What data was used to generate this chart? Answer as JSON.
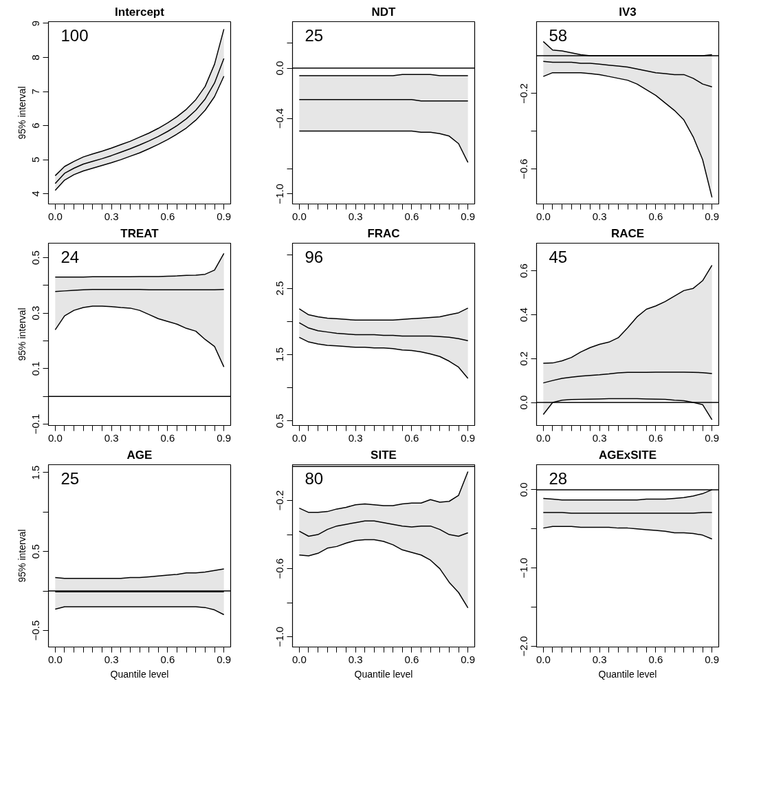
{
  "chart_data": [
    {
      "type": "line",
      "title": "Intercept",
      "ylabel": "95% interval",
      "annotations": [
        "100"
      ],
      "x": [
        0.05,
        0.1,
        0.15,
        0.2,
        0.25,
        0.3,
        0.35,
        0.4,
        0.45,
        0.5,
        0.55,
        0.6,
        0.65,
        0.7,
        0.75,
        0.8,
        0.85,
        0.9,
        0.95
      ],
      "series": [
        {
          "color": "#000000",
          "values": [
            4.3,
            4.6,
            4.75,
            4.87,
            4.95,
            5.03,
            5.12,
            5.22,
            5.32,
            5.43,
            5.55,
            5.68,
            5.83,
            6.0,
            6.2,
            6.45,
            6.78,
            7.25,
            7.97
          ],
          "upper": [
            4.53,
            4.8,
            4.95,
            5.08,
            5.17,
            5.25,
            5.34,
            5.44,
            5.54,
            5.66,
            5.78,
            5.92,
            6.08,
            6.26,
            6.48,
            6.76,
            7.15,
            7.8,
            8.83
          ],
          "lower": [
            4.1,
            4.4,
            4.56,
            4.67,
            4.75,
            4.83,
            4.91,
            5.0,
            5.1,
            5.2,
            5.32,
            5.45,
            5.59,
            5.75,
            5.93,
            6.16,
            6.45,
            6.85,
            7.45
          ]
        },
        {
          "color": "#000000",
          "values": [
            4.53,
            4.8,
            4.95,
            5.08,
            5.17,
            5.25,
            5.34,
            5.44,
            5.54,
            5.66,
            5.78,
            5.92,
            6.08,
            6.26,
            6.48,
            6.76,
            7.15,
            7.8,
            8.83
          ]
        },
        {
          "color": "#000000",
          "values": [
            4.1,
            4.4,
            4.56,
            4.67,
            4.75,
            4.83,
            4.91,
            5.0,
            5.1,
            5.2,
            5.32,
            5.45,
            5.59,
            5.75,
            5.93,
            6.16,
            6.45,
            6.85,
            7.45
          ]
        }
      ],
      "xlim": [
        0.014,
        0.986
      ],
      "ylim": [
        3.7,
        9.05
      ],
      "yticks": [
        4,
        5,
        6,
        7,
        8,
        9
      ],
      "xticks": [
        {
          "value": 0.05,
          "label": "0.0"
        },
        {
          "value": 0.1,
          "label": null
        },
        {
          "value": 0.15,
          "label": null
        },
        {
          "value": 0.2,
          "label": null
        },
        {
          "value": 0.25,
          "label": null
        },
        {
          "value": 0.3,
          "label": null
        },
        {
          "value": 0.35,
          "label": "0.3"
        },
        {
          "value": 0.4,
          "label": null
        },
        {
          "value": 0.45,
          "label": null
        },
        {
          "value": 0.5,
          "label": null
        },
        {
          "value": 0.55,
          "label": null
        },
        {
          "value": 0.6,
          "label": null
        },
        {
          "value": 0.65,
          "label": "0.6"
        },
        {
          "value": 0.7,
          "label": null
        },
        {
          "value": 0.75,
          "label": null
        },
        {
          "value": 0.8,
          "label": null
        },
        {
          "value": 0.85,
          "label": null
        },
        {
          "value": 0.9,
          "label": null
        },
        {
          "value": 0.95,
          "label": "0.9"
        }
      ]
    },
    {
      "type": "line",
      "title": "NDT",
      "annotations": [
        "25"
      ],
      "x": [
        0.05,
        0.1,
        0.15,
        0.2,
        0.25,
        0.3,
        0.35,
        0.4,
        0.45,
        0.5,
        0.55,
        0.6,
        0.65,
        0.7,
        0.75,
        0.8,
        0.85,
        0.9,
        0.95
      ],
      "series": [
        {
          "color": "#000000",
          "values": [
            -0.25,
            -0.25,
            -0.25,
            -0.25,
            -0.25,
            -0.25,
            -0.25,
            -0.25,
            -0.25,
            -0.25,
            -0.25,
            -0.25,
            -0.25,
            -0.26,
            -0.26,
            -0.26,
            -0.26,
            -0.26,
            -0.26
          ],
          "upper": [
            -0.06,
            -0.06,
            -0.06,
            -0.06,
            -0.06,
            -0.06,
            -0.06,
            -0.06,
            -0.06,
            -0.06,
            -0.06,
            -0.05,
            -0.05,
            -0.05,
            -0.05,
            -0.06,
            -0.06,
            -0.06,
            -0.06
          ],
          "lower": [
            -0.5,
            -0.5,
            -0.5,
            -0.5,
            -0.5,
            -0.5,
            -0.5,
            -0.5,
            -0.5,
            -0.5,
            -0.5,
            -0.5,
            -0.5,
            -0.51,
            -0.51,
            -0.52,
            -0.54,
            -0.6,
            -0.75
          ]
        },
        {
          "color": "#000000",
          "values": [
            -0.06,
            -0.06,
            -0.06,
            -0.06,
            -0.06,
            -0.06,
            -0.06,
            -0.06,
            -0.06,
            -0.06,
            -0.06,
            -0.05,
            -0.05,
            -0.05,
            -0.05,
            -0.06,
            -0.06,
            -0.06,
            -0.06
          ]
        },
        {
          "color": "#000000",
          "values": [
            -0.5,
            -0.5,
            -0.5,
            -0.5,
            -0.5,
            -0.5,
            -0.5,
            -0.5,
            -0.5,
            -0.5,
            -0.5,
            -0.5,
            -0.5,
            -0.51,
            -0.51,
            -0.52,
            -0.54,
            -0.6,
            -0.75
          ]
        }
      ],
      "ref_lines": [
        {
          "axis": "y",
          "value": 0
        }
      ],
      "xlim": [
        0.014,
        0.986
      ],
      "ylim": [
        -1.08,
        0.37
      ],
      "yticks": [
        {
          "value": 0.2,
          "label": null
        },
        {
          "value": 0,
          "label": "0.0"
        },
        -0.4,
        {
          "value": -0.8,
          "label": null
        },
        {
          "value": -1,
          "label": "−1.0"
        }
      ],
      "xticks": [
        {
          "value": 0.05,
          "label": "0.0"
        },
        {
          "value": 0.1,
          "label": null
        },
        {
          "value": 0.15,
          "label": null
        },
        {
          "value": 0.2,
          "label": null
        },
        {
          "value": 0.25,
          "label": null
        },
        {
          "value": 0.3,
          "label": null
        },
        {
          "value": 0.35,
          "label": "0.3"
        },
        {
          "value": 0.4,
          "label": null
        },
        {
          "value": 0.45,
          "label": null
        },
        {
          "value": 0.5,
          "label": null
        },
        {
          "value": 0.55,
          "label": null
        },
        {
          "value": 0.6,
          "label": null
        },
        {
          "value": 0.65,
          "label": "0.6"
        },
        {
          "value": 0.7,
          "label": null
        },
        {
          "value": 0.75,
          "label": null
        },
        {
          "value": 0.8,
          "label": null
        },
        {
          "value": 0.85,
          "label": null
        },
        {
          "value": 0.9,
          "label": null
        },
        {
          "value": 0.95,
          "label": "0.9"
        }
      ]
    },
    {
      "type": "line",
      "title": "IV3",
      "annotations": [
        "58"
      ],
      "x": [
        0.05,
        0.1,
        0.15,
        0.2,
        0.25,
        0.3,
        0.35,
        0.4,
        0.45,
        0.5,
        0.55,
        0.6,
        0.65,
        0.7,
        0.75,
        0.8,
        0.85,
        0.9,
        0.95
      ],
      "series": [
        {
          "color": "#000000",
          "values": [
            -0.03,
            -0.035,
            -0.035,
            -0.035,
            -0.04,
            -0.04,
            -0.045,
            -0.05,
            -0.055,
            -0.06,
            -0.07,
            -0.08,
            -0.09,
            -0.095,
            -0.1,
            -0.1,
            -0.12,
            -0.15,
            -0.165
          ],
          "upper": [
            0.075,
            0.03,
            0.025,
            0.015,
            0.005,
            0.0,
            0.0,
            0.0,
            0.0,
            0.0,
            0.0,
            0.0,
            0.0,
            0.0,
            0.0,
            0.0,
            0.0,
            0.0,
            0.005
          ],
          "lower": [
            -0.11,
            -0.09,
            -0.09,
            -0.09,
            -0.09,
            -0.095,
            -0.1,
            -0.11,
            -0.12,
            -0.13,
            -0.15,
            -0.18,
            -0.21,
            -0.25,
            -0.29,
            -0.34,
            -0.43,
            -0.55,
            -0.75
          ]
        },
        {
          "color": "#000000",
          "values": [
            0.075,
            0.03,
            0.025,
            0.015,
            0.005,
            0.0,
            0.0,
            0.0,
            0.0,
            0.0,
            0.0,
            0.0,
            0.0,
            0.0,
            0.0,
            0.0,
            0.0,
            0.0,
            0.005
          ]
        },
        {
          "color": "#000000",
          "values": [
            -0.11,
            -0.09,
            -0.09,
            -0.09,
            -0.09,
            -0.095,
            -0.1,
            -0.11,
            -0.12,
            -0.13,
            -0.15,
            -0.18,
            -0.21,
            -0.25,
            -0.29,
            -0.34,
            -0.43,
            -0.55,
            -0.75
          ]
        }
      ],
      "ref_lines": [
        {
          "axis": "y",
          "value": 0
        }
      ],
      "xlim": [
        0.014,
        0.986
      ],
      "ylim": [
        -0.785,
        0.18
      ],
      "yticks": [
        -0.2,
        {
          "value": -0.4,
          "label": null
        },
        -0.6
      ],
      "xticks": [
        {
          "value": 0.05,
          "label": "0.0"
        },
        {
          "value": 0.1,
          "label": null
        },
        {
          "value": 0.15,
          "label": null
        },
        {
          "value": 0.2,
          "label": null
        },
        {
          "value": 0.25,
          "label": null
        },
        {
          "value": 0.3,
          "label": null
        },
        {
          "value": 0.35,
          "label": "0.3"
        },
        {
          "value": 0.4,
          "label": null
        },
        {
          "value": 0.45,
          "label": null
        },
        {
          "value": 0.5,
          "label": null
        },
        {
          "value": 0.55,
          "label": null
        },
        {
          "value": 0.6,
          "label": null
        },
        {
          "value": 0.65,
          "label": "0.6"
        },
        {
          "value": 0.7,
          "label": null
        },
        {
          "value": 0.75,
          "label": null
        },
        {
          "value": 0.8,
          "label": null
        },
        {
          "value": 0.85,
          "label": null
        },
        {
          "value": 0.9,
          "label": null
        },
        {
          "value": 0.95,
          "label": "0.9"
        }
      ]
    },
    {
      "type": "line",
      "title": "TREAT",
      "ylabel": "95% interval",
      "annotations": [
        "24"
      ],
      "x": [
        0.05,
        0.1,
        0.15,
        0.2,
        0.25,
        0.3,
        0.35,
        0.4,
        0.45,
        0.5,
        0.55,
        0.6,
        0.65,
        0.7,
        0.75,
        0.8,
        0.85,
        0.9,
        0.95
      ],
      "series": [
        {
          "color": "#000000",
          "values": [
            0.378,
            0.38,
            0.382,
            0.384,
            0.385,
            0.385,
            0.385,
            0.385,
            0.385,
            0.385,
            0.384,
            0.384,
            0.384,
            0.384,
            0.384,
            0.384,
            0.384,
            0.384,
            0.385
          ],
          "upper": [
            0.43,
            0.43,
            0.43,
            0.43,
            0.431,
            0.431,
            0.431,
            0.431,
            0.431,
            0.432,
            0.432,
            0.432,
            0.433,
            0.434,
            0.436,
            0.437,
            0.44,
            0.455,
            0.515
          ],
          "lower": [
            0.24,
            0.29,
            0.31,
            0.32,
            0.325,
            0.325,
            0.323,
            0.32,
            0.318,
            0.31,
            0.295,
            0.28,
            0.27,
            0.26,
            0.245,
            0.235,
            0.205,
            0.18,
            0.106
          ]
        },
        {
          "color": "#000000",
          "values": [
            0.43,
            0.43,
            0.43,
            0.43,
            0.431,
            0.431,
            0.431,
            0.431,
            0.431,
            0.432,
            0.432,
            0.432,
            0.433,
            0.434,
            0.436,
            0.437,
            0.44,
            0.455,
            0.515
          ]
        },
        {
          "color": "#000000",
          "values": [
            0.24,
            0.29,
            0.31,
            0.32,
            0.325,
            0.325,
            0.323,
            0.32,
            0.318,
            0.31,
            0.295,
            0.28,
            0.27,
            0.26,
            0.245,
            0.235,
            0.205,
            0.18,
            0.106
          ]
        }
      ],
      "ref_lines": [
        {
          "axis": "y",
          "value": 0
        }
      ],
      "xlim": [
        0.014,
        0.986
      ],
      "ylim": [
        -0.105,
        0.552
      ],
      "yticks": [
        -0.1,
        {
          "value": 0.0,
          "label": null
        },
        0.1,
        {
          "value": 0.2,
          "label": null
        },
        0.3,
        {
          "value": 0.4,
          "label": null
        },
        0.5
      ],
      "xticks": [
        {
          "value": 0.05,
          "label": "0.0"
        },
        {
          "value": 0.1,
          "label": null
        },
        {
          "value": 0.15,
          "label": null
        },
        {
          "value": 0.2,
          "label": null
        },
        {
          "value": 0.25,
          "label": null
        },
        {
          "value": 0.3,
          "label": null
        },
        {
          "value": 0.35,
          "label": "0.3"
        },
        {
          "value": 0.4,
          "label": null
        },
        {
          "value": 0.45,
          "label": null
        },
        {
          "value": 0.5,
          "label": null
        },
        {
          "value": 0.55,
          "label": null
        },
        {
          "value": 0.6,
          "label": null
        },
        {
          "value": 0.65,
          "label": "0.6"
        },
        {
          "value": 0.7,
          "label": null
        },
        {
          "value": 0.75,
          "label": null
        },
        {
          "value": 0.8,
          "label": null
        },
        {
          "value": 0.85,
          "label": null
        },
        {
          "value": 0.9,
          "label": null
        },
        {
          "value": 0.95,
          "label": "0.9"
        }
      ]
    },
    {
      "type": "line",
      "title": "FRAC",
      "annotations": [
        "96"
      ],
      "x": [
        0.05,
        0.1,
        0.15,
        0.2,
        0.25,
        0.3,
        0.35,
        0.4,
        0.45,
        0.5,
        0.55,
        0.6,
        0.65,
        0.7,
        0.75,
        0.8,
        0.85,
        0.9,
        0.95
      ],
      "series": [
        {
          "color": "#000000",
          "values": [
            1.98,
            1.9,
            1.86,
            1.84,
            1.82,
            1.81,
            1.8,
            1.8,
            1.8,
            1.79,
            1.79,
            1.78,
            1.78,
            1.78,
            1.78,
            1.77,
            1.76,
            1.74,
            1.71
          ],
          "upper": [
            2.19,
            2.1,
            2.07,
            2.05,
            2.04,
            2.03,
            2.02,
            2.02,
            2.02,
            2.02,
            2.02,
            2.03,
            2.04,
            2.05,
            2.06,
            2.07,
            2.1,
            2.13,
            2.2
          ],
          "lower": [
            1.76,
            1.69,
            1.66,
            1.64,
            1.63,
            1.62,
            1.61,
            1.61,
            1.6,
            1.6,
            1.59,
            1.57,
            1.56,
            1.54,
            1.51,
            1.47,
            1.4,
            1.31,
            1.14
          ]
        },
        {
          "color": "#000000",
          "values": [
            2.19,
            2.1,
            2.07,
            2.05,
            2.04,
            2.03,
            2.02,
            2.02,
            2.02,
            2.02,
            2.02,
            2.03,
            2.04,
            2.05,
            2.06,
            2.07,
            2.1,
            2.13,
            2.2
          ]
        },
        {
          "color": "#000000",
          "values": [
            1.76,
            1.69,
            1.66,
            1.64,
            1.63,
            1.62,
            1.61,
            1.61,
            1.6,
            1.6,
            1.59,
            1.57,
            1.56,
            1.54,
            1.51,
            1.47,
            1.4,
            1.31,
            1.14
          ]
        }
      ],
      "xlim": [
        0.014,
        0.986
      ],
      "ylim": [
        0.43,
        3.18
      ],
      "yticks": [
        0.5,
        {
          "value": 1.0,
          "label": null
        },
        1.5,
        {
          "value": 2.0,
          "label": null
        },
        2.5,
        {
          "value": 3.0,
          "label": null
        }
      ],
      "xticks": [
        {
          "value": 0.05,
          "label": "0.0"
        },
        {
          "value": 0.1,
          "label": null
        },
        {
          "value": 0.15,
          "label": null
        },
        {
          "value": 0.2,
          "label": null
        },
        {
          "value": 0.25,
          "label": null
        },
        {
          "value": 0.3,
          "label": null
        },
        {
          "value": 0.35,
          "label": "0.3"
        },
        {
          "value": 0.4,
          "label": null
        },
        {
          "value": 0.45,
          "label": null
        },
        {
          "value": 0.5,
          "label": null
        },
        {
          "value": 0.55,
          "label": null
        },
        {
          "value": 0.6,
          "label": null
        },
        {
          "value": 0.65,
          "label": "0.6"
        },
        {
          "value": 0.7,
          "label": null
        },
        {
          "value": 0.75,
          "label": null
        },
        {
          "value": 0.8,
          "label": null
        },
        {
          "value": 0.85,
          "label": null
        },
        {
          "value": 0.9,
          "label": null
        },
        {
          "value": 0.95,
          "label": "0.9"
        }
      ]
    },
    {
      "type": "line",
      "title": "RACE",
      "annotations": [
        "45"
      ],
      "x": [
        0.05,
        0.1,
        0.15,
        0.2,
        0.25,
        0.3,
        0.35,
        0.4,
        0.45,
        0.5,
        0.55,
        0.6,
        0.65,
        0.7,
        0.75,
        0.8,
        0.85,
        0.9,
        0.95
      ],
      "series": [
        {
          "color": "#000000",
          "values": [
            0.089,
            0.1,
            0.11,
            0.115,
            0.12,
            0.123,
            0.126,
            0.13,
            0.135,
            0.137,
            0.137,
            0.137,
            0.138,
            0.138,
            0.138,
            0.138,
            0.137,
            0.136,
            0.132
          ],
          "upper": [
            0.179,
            0.18,
            0.19,
            0.205,
            0.23,
            0.25,
            0.265,
            0.275,
            0.295,
            0.34,
            0.39,
            0.425,
            0.44,
            0.46,
            0.485,
            0.51,
            0.52,
            0.555,
            0.625
          ],
          "lower": [
            -0.055,
            0.0,
            0.01,
            0.013,
            0.014,
            0.015,
            0.016,
            0.017,
            0.017,
            0.017,
            0.017,
            0.016,
            0.015,
            0.014,
            0.01,
            0.008,
            0.0,
            -0.01,
            -0.079
          ]
        },
        {
          "color": "#000000",
          "values": [
            0.179,
            0.18,
            0.19,
            0.205,
            0.23,
            0.25,
            0.265,
            0.275,
            0.295,
            0.34,
            0.39,
            0.425,
            0.44,
            0.46,
            0.485,
            0.51,
            0.52,
            0.555,
            0.625
          ]
        },
        {
          "color": "#000000",
          "values": [
            -0.055,
            0.0,
            0.01,
            0.013,
            0.014,
            0.015,
            0.016,
            0.017,
            0.017,
            0.017,
            0.017,
            0.016,
            0.015,
            0.014,
            0.01,
            0.008,
            0.0,
            -0.01,
            -0.079
          ]
        }
      ],
      "ref_lines": [
        {
          "axis": "y",
          "value": 0
        }
      ],
      "xlim": [
        0.014,
        0.986
      ],
      "ylim": [
        -0.105,
        0.726
      ],
      "yticks": [
        {
          "value": 0,
          "label": "0.0"
        },
        0.2,
        0.4,
        0.6
      ],
      "xticks": [
        {
          "value": 0.05,
          "label": "0.0"
        },
        {
          "value": 0.1,
          "label": null
        },
        {
          "value": 0.15,
          "label": null
        },
        {
          "value": 0.2,
          "label": null
        },
        {
          "value": 0.25,
          "label": null
        },
        {
          "value": 0.3,
          "label": null
        },
        {
          "value": 0.35,
          "label": "0.3"
        },
        {
          "value": 0.4,
          "label": null
        },
        {
          "value": 0.45,
          "label": null
        },
        {
          "value": 0.5,
          "label": null
        },
        {
          "value": 0.55,
          "label": null
        },
        {
          "value": 0.6,
          "label": null
        },
        {
          "value": 0.65,
          "label": "0.6"
        },
        {
          "value": 0.7,
          "label": null
        },
        {
          "value": 0.75,
          "label": null
        },
        {
          "value": 0.8,
          "label": null
        },
        {
          "value": 0.85,
          "label": null
        },
        {
          "value": 0.9,
          "label": null
        },
        {
          "value": 0.95,
          "label": "0.9"
        }
      ]
    },
    {
      "type": "line",
      "title": "AGE",
      "ylabel": "95% interval",
      "xlabel": "Quantile level",
      "annotations": [
        "25"
      ],
      "x": [
        0.05,
        0.1,
        0.15,
        0.2,
        0.25,
        0.3,
        0.35,
        0.4,
        0.45,
        0.5,
        0.55,
        0.6,
        0.65,
        0.7,
        0.75,
        0.8,
        0.85,
        0.9,
        0.95
      ],
      "series": [
        {
          "color": "#000000",
          "values": [
            -0.01,
            -0.01,
            -0.01,
            -0.01,
            -0.01,
            -0.01,
            -0.01,
            -0.01,
            -0.01,
            -0.01,
            -0.01,
            -0.01,
            -0.01,
            -0.01,
            -0.01,
            -0.01,
            -0.01,
            -0.01,
            -0.01
          ],
          "upper": [
            0.17,
            0.16,
            0.16,
            0.16,
            0.16,
            0.16,
            0.16,
            0.16,
            0.17,
            0.17,
            0.18,
            0.19,
            0.2,
            0.21,
            0.23,
            0.23,
            0.24,
            0.26,
            0.28
          ],
          "lower": [
            -0.23,
            -0.2,
            -0.2,
            -0.2,
            -0.2,
            -0.2,
            -0.2,
            -0.2,
            -0.2,
            -0.2,
            -0.2,
            -0.2,
            -0.2,
            -0.2,
            -0.2,
            -0.2,
            -0.21,
            -0.24,
            -0.3
          ]
        },
        {
          "color": "#000000",
          "values": [
            0.17,
            0.16,
            0.16,
            0.16,
            0.16,
            0.16,
            0.16,
            0.16,
            0.17,
            0.17,
            0.18,
            0.19,
            0.2,
            0.21,
            0.23,
            0.23,
            0.24,
            0.26,
            0.28
          ]
        },
        {
          "color": "#000000",
          "values": [
            -0.23,
            -0.2,
            -0.2,
            -0.2,
            -0.2,
            -0.2,
            -0.2,
            -0.2,
            -0.2,
            -0.2,
            -0.2,
            -0.2,
            -0.2,
            -0.2,
            -0.2,
            -0.2,
            -0.21,
            -0.24,
            -0.3
          ]
        }
      ],
      "ref_lines": [
        {
          "axis": "y",
          "value": 0
        }
      ],
      "xlim": [
        0.014,
        0.986
      ],
      "ylim": [
        -0.71,
        1.6
      ],
      "yticks": [
        -0.5,
        {
          "value": 0.0,
          "label": null
        },
        0.5,
        {
          "value": 1.0,
          "label": null
        },
        1.5
      ],
      "xticks": [
        {
          "value": 0.05,
          "label": "0.0"
        },
        {
          "value": 0.1,
          "label": null
        },
        {
          "value": 0.15,
          "label": null
        },
        {
          "value": 0.2,
          "label": null
        },
        {
          "value": 0.25,
          "label": null
        },
        {
          "value": 0.3,
          "label": null
        },
        {
          "value": 0.35,
          "label": "0.3"
        },
        {
          "value": 0.4,
          "label": null
        },
        {
          "value": 0.45,
          "label": null
        },
        {
          "value": 0.5,
          "label": null
        },
        {
          "value": 0.55,
          "label": null
        },
        {
          "value": 0.6,
          "label": null
        },
        {
          "value": 0.65,
          "label": "0.6"
        },
        {
          "value": 0.7,
          "label": null
        },
        {
          "value": 0.75,
          "label": null
        },
        {
          "value": 0.8,
          "label": null
        },
        {
          "value": 0.85,
          "label": null
        },
        {
          "value": 0.9,
          "label": null
        },
        {
          "value": 0.95,
          "label": "0.9"
        }
      ]
    },
    {
      "type": "line",
      "title": "SITE",
      "xlabel": "Quantile level",
      "annotations": [
        "80"
      ],
      "x": [
        0.05,
        0.1,
        0.15,
        0.2,
        0.25,
        0.3,
        0.35,
        0.4,
        0.45,
        0.5,
        0.55,
        0.6,
        0.65,
        0.7,
        0.75,
        0.8,
        0.85,
        0.9,
        0.95
      ],
      "series": [
        {
          "color": "#000000",
          "values": [
            -0.38,
            -0.41,
            -0.4,
            -0.37,
            -0.35,
            -0.34,
            -0.33,
            -0.32,
            -0.32,
            -0.33,
            -0.34,
            -0.35,
            -0.355,
            -0.35,
            -0.35,
            -0.37,
            -0.4,
            -0.41,
            -0.39
          ],
          "upper": [
            -0.245,
            -0.27,
            -0.27,
            -0.265,
            -0.25,
            -0.24,
            -0.225,
            -0.22,
            -0.225,
            -0.23,
            -0.23,
            -0.22,
            -0.215,
            -0.215,
            -0.195,
            -0.21,
            -0.205,
            -0.17,
            -0.03
          ],
          "lower": [
            -0.52,
            -0.525,
            -0.51,
            -0.48,
            -0.47,
            -0.45,
            -0.435,
            -0.43,
            -0.43,
            -0.44,
            -0.46,
            -0.49,
            -0.505,
            -0.52,
            -0.55,
            -0.6,
            -0.68,
            -0.74,
            -0.83
          ]
        },
        {
          "color": "#000000",
          "values": [
            -0.245,
            -0.27,
            -0.27,
            -0.265,
            -0.25,
            -0.24,
            -0.225,
            -0.22,
            -0.225,
            -0.23,
            -0.23,
            -0.22,
            -0.215,
            -0.215,
            -0.195,
            -0.21,
            -0.205,
            -0.17,
            -0.03
          ]
        },
        {
          "color": "#000000",
          "values": [
            -0.52,
            -0.525,
            -0.51,
            -0.48,
            -0.47,
            -0.45,
            -0.435,
            -0.43,
            -0.43,
            -0.44,
            -0.46,
            -0.49,
            -0.505,
            -0.52,
            -0.55,
            -0.6,
            -0.68,
            -0.74,
            -0.83
          ]
        }
      ],
      "ref_lines": [
        {
          "axis": "y",
          "value": 0
        }
      ],
      "xlim": [
        0.014,
        0.986
      ],
      "ylim": [
        -1.06,
        0.01
      ],
      "yticks": [
        -0.2,
        {
          "value": -0.4,
          "label": null
        },
        -0.6,
        {
          "value": -0.8,
          "label": null
        },
        {
          "value": -1,
          "label": "−1.0"
        }
      ],
      "xticks": [
        {
          "value": 0.05,
          "label": "0.0"
        },
        {
          "value": 0.1,
          "label": null
        },
        {
          "value": 0.15,
          "label": null
        },
        {
          "value": 0.2,
          "label": null
        },
        {
          "value": 0.25,
          "label": null
        },
        {
          "value": 0.3,
          "label": null
        },
        {
          "value": 0.35,
          "label": "0.3"
        },
        {
          "value": 0.4,
          "label": null
        },
        {
          "value": 0.45,
          "label": null
        },
        {
          "value": 0.5,
          "label": null
        },
        {
          "value": 0.55,
          "label": null
        },
        {
          "value": 0.6,
          "label": null
        },
        {
          "value": 0.65,
          "label": "0.6"
        },
        {
          "value": 0.7,
          "label": null
        },
        {
          "value": 0.75,
          "label": null
        },
        {
          "value": 0.8,
          "label": null
        },
        {
          "value": 0.85,
          "label": null
        },
        {
          "value": 0.9,
          "label": null
        },
        {
          "value": 0.95,
          "label": "0.9"
        }
      ]
    },
    {
      "type": "line",
      "title": "AGExSITE",
      "xlabel": "Quantile level",
      "annotations": [
        "28"
      ],
      "x": [
        0.05,
        0.1,
        0.15,
        0.2,
        0.25,
        0.3,
        0.35,
        0.4,
        0.45,
        0.5,
        0.55,
        0.6,
        0.65,
        0.7,
        0.75,
        0.8,
        0.85,
        0.9,
        0.95
      ],
      "series": [
        {
          "color": "#000000",
          "values": [
            -0.29,
            -0.29,
            -0.29,
            -0.3,
            -0.3,
            -0.3,
            -0.3,
            -0.3,
            -0.3,
            -0.3,
            -0.3,
            -0.3,
            -0.3,
            -0.3,
            -0.3,
            -0.3,
            -0.3,
            -0.29,
            -0.29
          ],
          "upper": [
            -0.11,
            -0.12,
            -0.13,
            -0.13,
            -0.13,
            -0.13,
            -0.13,
            -0.13,
            -0.13,
            -0.13,
            -0.13,
            -0.12,
            -0.12,
            -0.12,
            -0.11,
            -0.1,
            -0.08,
            -0.05,
            0.0
          ],
          "lower": [
            -0.49,
            -0.47,
            -0.47,
            -0.47,
            -0.48,
            -0.48,
            -0.48,
            -0.48,
            -0.49,
            -0.49,
            -0.5,
            -0.51,
            -0.52,
            -0.53,
            -0.55,
            -0.55,
            -0.56,
            -0.58,
            -0.63
          ]
        },
        {
          "color": "#000000",
          "values": [
            -0.11,
            -0.12,
            -0.13,
            -0.13,
            -0.13,
            -0.13,
            -0.13,
            -0.13,
            -0.13,
            -0.13,
            -0.13,
            -0.12,
            -0.12,
            -0.12,
            -0.11,
            -0.1,
            -0.08,
            -0.05,
            0.0
          ]
        },
        {
          "color": "#000000",
          "values": [
            -0.49,
            -0.47,
            -0.47,
            -0.47,
            -0.48,
            -0.48,
            -0.48,
            -0.48,
            -0.49,
            -0.49,
            -0.5,
            -0.51,
            -0.52,
            -0.53,
            -0.55,
            -0.55,
            -0.56,
            -0.58,
            -0.63
          ]
        }
      ],
      "ref_lines": [
        {
          "axis": "y",
          "value": 0
        }
      ],
      "xlim": [
        0.014,
        0.986
      ],
      "ylim": [
        -2.01,
        0.32
      ],
      "yticks": [
        {
          "value": -2,
          "label": "−2.0"
        },
        {
          "value": -1.5,
          "label": null
        },
        {
          "value": -1,
          "label": "−1.0"
        },
        {
          "value": -0.5,
          "label": null
        },
        {
          "value": 0,
          "label": "0.0"
        }
      ],
      "xticks": [
        {
          "value": 0.05,
          "label": "0.0"
        },
        {
          "value": 0.1,
          "label": null
        },
        {
          "value": 0.15,
          "label": null
        },
        {
          "value": 0.2,
          "label": null
        },
        {
          "value": 0.25,
          "label": null
        },
        {
          "value": 0.3,
          "label": null
        },
        {
          "value": 0.35,
          "label": "0.3"
        },
        {
          "value": 0.4,
          "label": null
        },
        {
          "value": 0.45,
          "label": null
        },
        {
          "value": 0.5,
          "label": null
        },
        {
          "value": 0.55,
          "label": null
        },
        {
          "value": 0.6,
          "label": null
        },
        {
          "value": 0.65,
          "label": "0.6"
        },
        {
          "value": 0.7,
          "label": null
        },
        {
          "value": 0.75,
          "label": null
        },
        {
          "value": 0.8,
          "label": null
        },
        {
          "value": 0.85,
          "label": null
        },
        {
          "value": 0.9,
          "label": null
        },
        {
          "value": 0.95,
          "label": "0.9"
        }
      ]
    }
  ]
}
